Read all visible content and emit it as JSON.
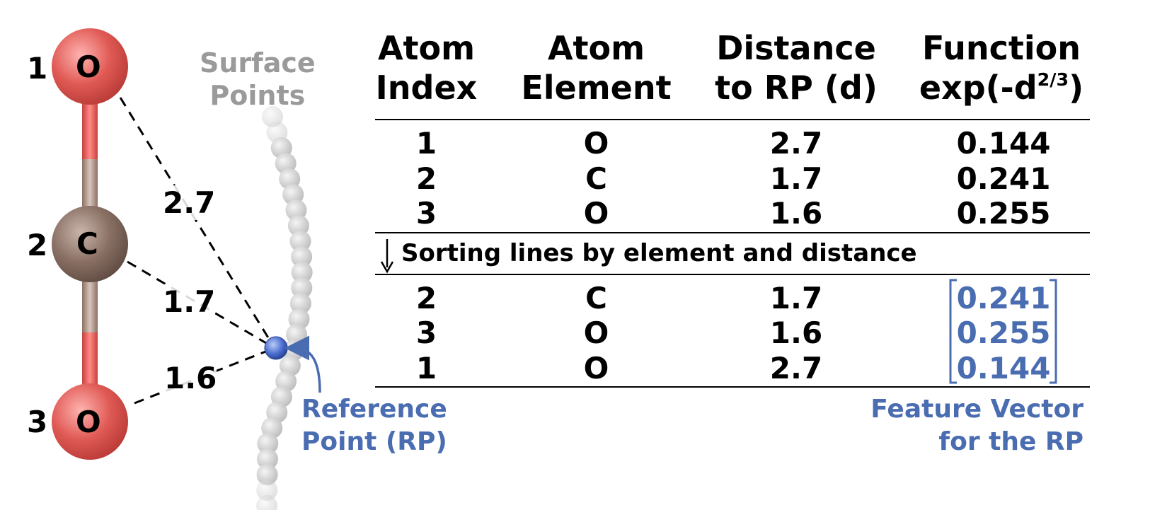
{
  "molecule": {
    "atoms": [
      {
        "index": "1",
        "symbol": "O",
        "color": "#e55050"
      },
      {
        "index": "2",
        "symbol": "C",
        "color": "#8a7064"
      },
      {
        "index": "3",
        "symbol": "O",
        "color": "#e55050"
      }
    ],
    "distances": [
      "2.7",
      "1.7",
      "1.6"
    ],
    "surface_label": "Surface\nPoints",
    "rp_label": "Reference\nPoint (RP)",
    "rp_color": "#4a6cb0"
  },
  "table": {
    "headers": {
      "atom_index": "Atom\nIndex",
      "atom_element": "Atom\nElement",
      "distance": "Distance\nto RP (d)",
      "function_line1": "Function",
      "function_line2_prefix": "exp(-d",
      "function_exponent": "2/3",
      "function_line2_suffix": ")"
    },
    "rows_unsorted": [
      {
        "index": "1",
        "element": "O",
        "distance": "2.7",
        "value": "0.144"
      },
      {
        "index": "2",
        "element": "C",
        "distance": "1.7",
        "value": "0.241"
      },
      {
        "index": "3",
        "element": "O",
        "distance": "1.6",
        "value": "0.255"
      }
    ],
    "sort_label": "Sorting lines by element and distance",
    "rows_sorted": [
      {
        "index": "2",
        "element": "C",
        "distance": "1.7",
        "value": "0.241"
      },
      {
        "index": "3",
        "element": "O",
        "distance": "1.6",
        "value": "0.255"
      },
      {
        "index": "1",
        "element": "O",
        "distance": "2.7",
        "value": "0.144"
      }
    ],
    "feature_label": "Feature Vector\nfor the RP",
    "accent_color": "#4a6cb0"
  }
}
